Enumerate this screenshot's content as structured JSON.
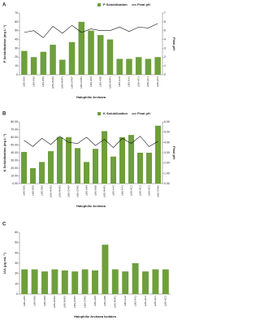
{
  "chart_data": [
    {
      "type": "bar",
      "panel": "A",
      "categories": [
        "LMS-HB1",
        "LMS-HB2",
        "LMS-DB3",
        "LMS-RAR2",
        "LMS-RAR3",
        "LMS-CPB7",
        "LMS-CPB1",
        "LMS-HB4",
        "LMS-HB5",
        "LMS-RAR1",
        "LMS-HA2",
        "LMS-HA1",
        "LMS-HC3",
        "LMS-HC1",
        "LMS-HC2"
      ],
      "series": [
        {
          "name": "P Solubilization",
          "color": "#6e9f3c",
          "values": [
            27,
            20,
            26,
            34,
            17,
            37,
            60,
            50,
            45,
            40,
            18,
            18,
            20,
            18,
            20
          ]
        },
        {
          "name": "Final pH",
          "color": "#111111",
          "axis": "y2",
          "values": [
            4.8,
            5.0,
            4.2,
            5.5,
            4.7,
            5.6,
            4.8,
            5.2,
            5.0,
            5.0,
            5.4,
            4.9,
            5.4,
            5.3,
            5.8
          ]
        }
      ],
      "xlabel": "Halophilic Archaea",
      "ylabel": "P Solubilization (mg L⁻¹)",
      "y2label": "Final pH",
      "ylim": [
        0,
        70
      ],
      "yticks": [
        0,
        10,
        20,
        30,
        40,
        50,
        60,
        70
      ],
      "y2lim": [
        0,
        7
      ],
      "y2ticks": [
        0,
        1,
        2,
        3,
        4,
        5,
        6,
        7
      ]
    },
    {
      "type": "bar",
      "panel": "B",
      "categories": [
        "LMS-HB1",
        "LMS-HB2",
        "LMS-DB3",
        "LMS-RAR2",
        "LMS-RAR3",
        "LMS-CPB7",
        "LMS-CPB1",
        "LMS-HB4",
        "LMS-HB5",
        "LMS-RAR1",
        "LMS-HA2",
        "LMS-HA1",
        "LMS-HC3",
        "LMS-HC1",
        "LMS-HC2",
        "LMS-CPB2"
      ],
      "series": [
        {
          "name": "K Solubilization",
          "color": "#6e9f3c",
          "values": [
            41,
            20,
            28,
            42,
            60,
            60,
            46,
            28,
            45,
            68,
            35,
            60,
            63,
            40,
            40,
            75
          ]
        },
        {
          "name": "Final pH",
          "color": "#111111",
          "axis": "y2",
          "values": [
            4.2,
            3.6,
            4.4,
            3.8,
            4.6,
            4.0,
            3.9,
            4.5,
            3.7,
            4.3,
            3.5,
            4.4,
            3.9,
            4.6,
            3.6,
            4.1
          ]
        }
      ],
      "xlabel": "Halophilic Archaea",
      "ylabel": "K Solubilization (mg L⁻¹)",
      "y2label": "Final pH",
      "ylim": [
        0,
        80
      ],
      "yticks": [
        {
          "value": 0,
          "label": "0.00"
        },
        {
          "value": 10,
          "label": "10.00"
        },
        {
          "value": 20,
          "label": "20.00"
        },
        {
          "value": 30,
          "label": "30.00"
        },
        {
          "value": 40,
          "label": "40.00"
        },
        {
          "value": 50,
          "label": "50.00"
        },
        {
          "value": 60,
          "label": "60.00"
        },
        {
          "value": 70,
          "label": "70.00"
        },
        {
          "value": 80,
          "label": "80.00"
        }
      ],
      "y2lim": [
        0,
        6
      ],
      "y2ticks": [
        {
          "value": 0,
          "label": "0.00"
        },
        {
          "value": 1,
          "label": "1.00"
        },
        {
          "value": 2,
          "label": "2.00"
        },
        {
          "value": 3,
          "label": "3.00"
        },
        {
          "value": 4,
          "label": "4.00"
        },
        {
          "value": 5,
          "label": "5.00"
        },
        {
          "value": 6,
          "label": "6.00"
        }
      ]
    },
    {
      "type": "bar",
      "panel": "C",
      "categories": [
        "LMS-HB1",
        "LMS-HB2",
        "LMS-DB3",
        "LMS-RAR2",
        "LMS-RAR3",
        "LMS-CPB7",
        "LMS-CPB1",
        "LMS-HB4",
        "LMS-HB5",
        "LMS-RAR1",
        "LMS-HA2",
        "LMS-HA1",
        "LMS-HC3",
        "LMS-HC1",
        "LMS-HC2"
      ],
      "series": [
        {
          "name": "IAA",
          "color": "#6e9f3c",
          "values": [
            24,
            24,
            22,
            24,
            23,
            22,
            24,
            23,
            48,
            24,
            22,
            30,
            22,
            24,
            24
          ]
        }
      ],
      "xlabel": "Halophilic Archaea Isolates",
      "ylabel": "IAA (μg mL⁻¹)",
      "ylim": [
        0,
        60
      ],
      "yticks": [
        0,
        10,
        20,
        30,
        40,
        50,
        60
      ]
    }
  ]
}
